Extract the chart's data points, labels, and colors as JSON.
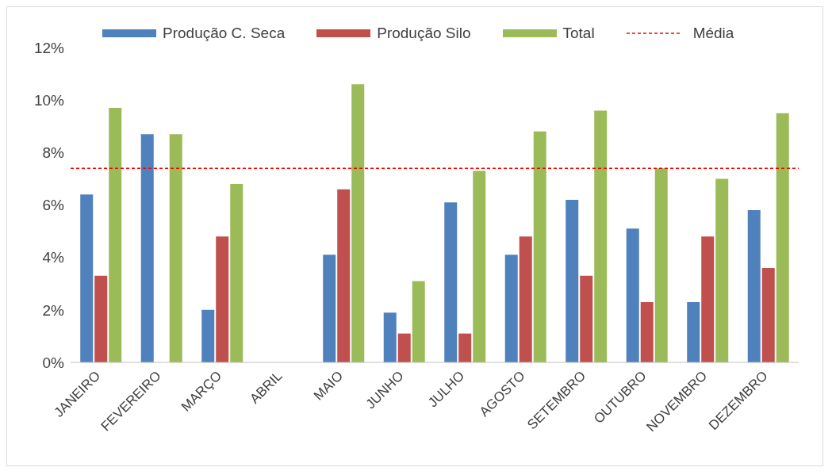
{
  "chart_data": {
    "type": "bar",
    "categories": [
      "JANEIRO",
      "FEVEREIRO",
      "MARÇO",
      "ABRIL",
      "MAIO",
      "JUNHO",
      "JULHO",
      "AGOSTO",
      "SETEMBRO",
      "OUTUBRO",
      "NOVEMBRO",
      "DEZEMBRO"
    ],
    "series": [
      {
        "name": "Produção C. Seca",
        "color": "#4f81bd",
        "values": [
          6.4,
          8.7,
          2.0,
          0,
          4.1,
          1.9,
          6.1,
          4.1,
          6.2,
          5.1,
          2.3,
          5.8
        ]
      },
      {
        "name": "Produção Silo",
        "color": "#c0504d",
        "values": [
          3.3,
          0,
          4.8,
          0,
          6.6,
          1.1,
          1.1,
          4.8,
          3.3,
          2.3,
          4.8,
          3.6
        ]
      },
      {
        "name": "Total",
        "color": "#9bbb59",
        "values": [
          9.7,
          8.7,
          6.8,
          0,
          10.6,
          3.1,
          7.3,
          8.8,
          9.6,
          7.4,
          7.0,
          9.5
        ]
      }
    ],
    "ylim": [
      0,
      12
    ],
    "yticks": [
      {
        "value": 0,
        "label": "0%"
      },
      {
        "value": 2,
        "label": "2%"
      },
      {
        "value": 4,
        "label": "4%"
      },
      {
        "value": 6,
        "label": "6%"
      },
      {
        "value": 8,
        "label": "8%"
      },
      {
        "value": 10,
        "label": "10%"
      },
      {
        "value": 12,
        "label": "12%"
      }
    ],
    "ref_lines": [
      {
        "axis": "y",
        "value": 7.4,
        "label": "Média",
        "color": "#ff0000",
        "line_style": "dashed"
      }
    ],
    "grid": false,
    "legend": "top"
  }
}
